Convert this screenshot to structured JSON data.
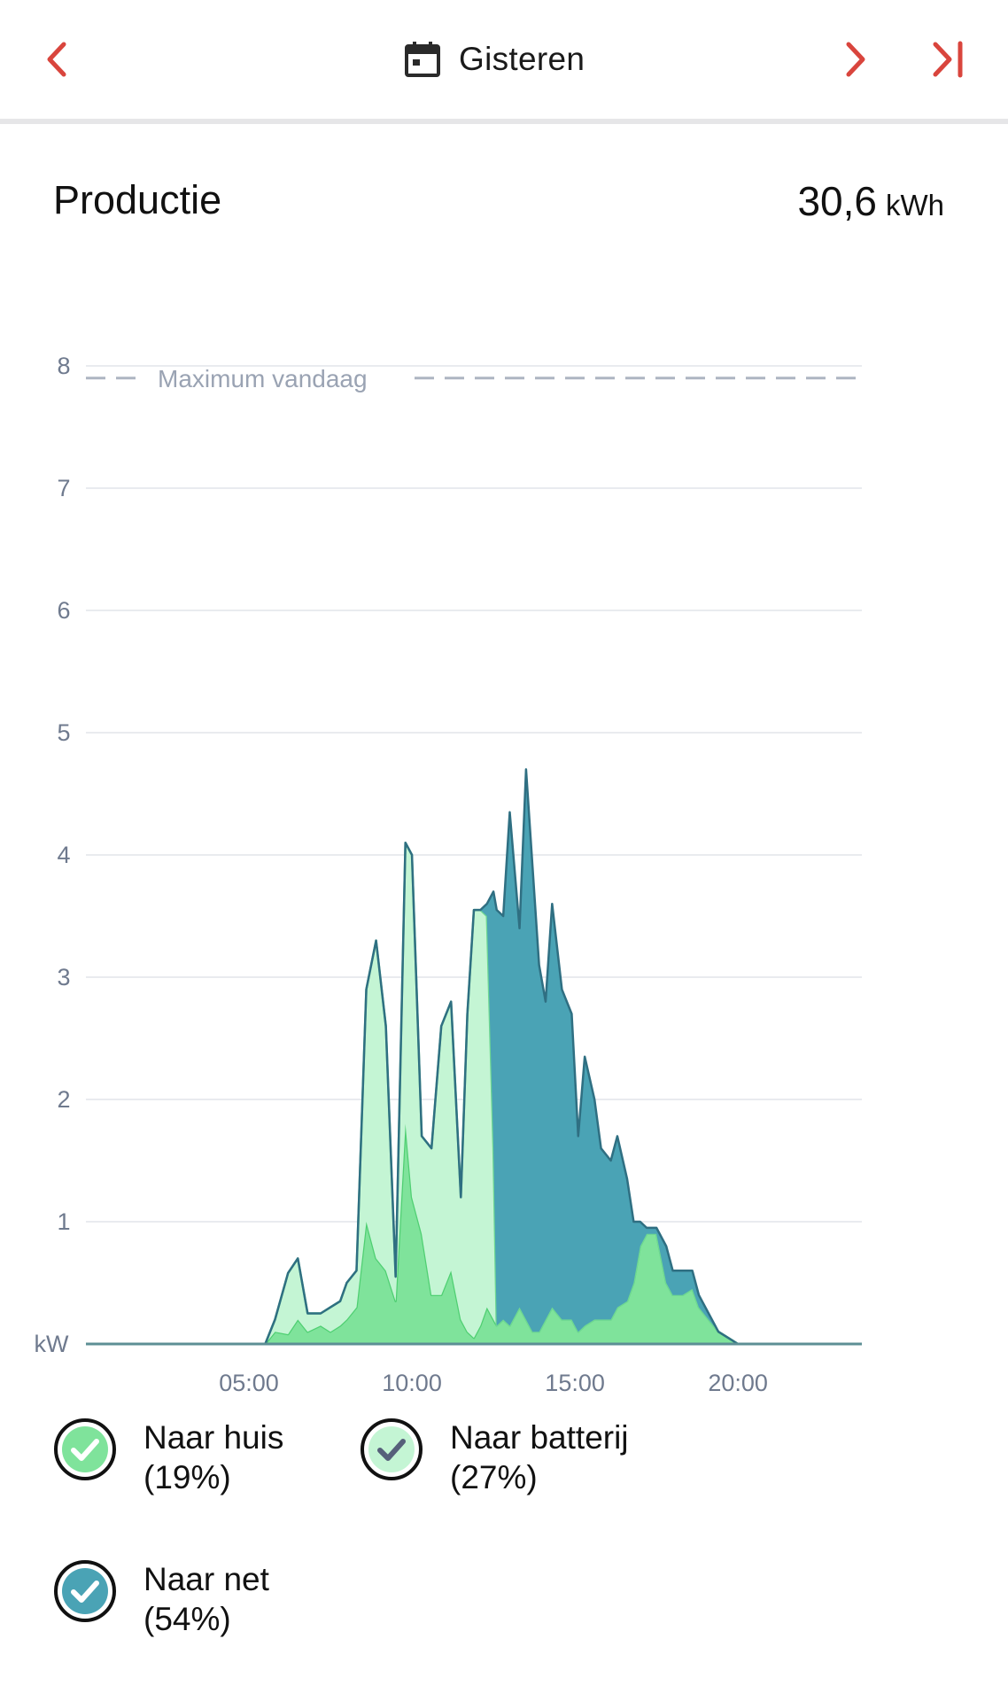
{
  "header": {
    "date_label": "Gisteren",
    "prev_icon": "chevron-left-icon",
    "next_icon": "chevron-right-icon",
    "last_icon": "skip-to-end-icon",
    "calendar_icon": "calendar-icon",
    "accent_color": "#d9453d"
  },
  "production": {
    "title": "Productie",
    "total_value": "30,6",
    "total_unit": "kWh"
  },
  "legend": [
    {
      "label": "Naar huis",
      "pct": "(19%)",
      "color": "#7fe39b",
      "check_color": "#ffffff"
    },
    {
      "label": "Naar batterij",
      "pct": "(27%)",
      "color": "#c4f5d4",
      "check_color": "#56607a"
    },
    {
      "label": "Naar net",
      "pct": "(54%)",
      "color": "#4aa3b5",
      "check_color": "#ffffff"
    }
  ],
  "chart_data": {
    "type": "area",
    "y_unit_label": "kW",
    "ylim": [
      0,
      8
    ],
    "y_ticks": [
      "1",
      "2",
      "3",
      "4",
      "5",
      "6",
      "7",
      "8"
    ],
    "x_tick_labels": [
      "05:00",
      "10:00",
      "15:00",
      "20:00"
    ],
    "x_tick_hours": [
      5,
      10,
      15,
      20
    ],
    "xlim_hours": [
      0,
      23.8
    ],
    "grid": true,
    "reference_line": {
      "label": "Maximum vandaag",
      "value": 7.9,
      "style": "dashed"
    },
    "stacked": true,
    "x_hours": [
      0,
      5.5,
      5.8,
      6.2,
      6.5,
      6.8,
      7.2,
      7.5,
      7.8,
      8.0,
      8.3,
      8.6,
      8.9,
      9.2,
      9.5,
      9.8,
      10.0,
      10.3,
      10.6,
      10.9,
      11.2,
      11.5,
      11.7,
      11.9,
      12.1,
      12.3,
      12.5,
      12.6,
      12.8,
      13.0,
      13.3,
      13.5,
      13.7,
      13.9,
      14.1,
      14.3,
      14.6,
      14.9,
      15.1,
      15.3,
      15.6,
      15.8,
      16.1,
      16.3,
      16.6,
      16.8,
      17.0,
      17.2,
      17.5,
      17.8,
      18.0,
      18.3,
      18.6,
      18.8,
      19.1,
      19.4,
      19.7,
      20.0,
      20.4,
      20.8,
      21.3,
      23.8
    ],
    "series": [
      {
        "name": "Naar huis",
        "color": "#7fe39b",
        "values": [
          0,
          0,
          0.1,
          0.08,
          0.2,
          0.1,
          0.15,
          0.1,
          0.15,
          0.2,
          0.3,
          1.0,
          0.7,
          0.6,
          0.35,
          1.8,
          1.2,
          0.9,
          0.4,
          0.4,
          0.6,
          0.2,
          0.1,
          0.05,
          0.15,
          0.3,
          0.2,
          0.15,
          0.2,
          0.15,
          0.3,
          0.2,
          0.1,
          0.1,
          0.2,
          0.3,
          0.2,
          0.2,
          0.1,
          0.15,
          0.2,
          0.2,
          0.2,
          0.3,
          0.35,
          0.5,
          0.8,
          0.9,
          0.9,
          0.5,
          0.4,
          0.4,
          0.45,
          0.3,
          0.2,
          0.1,
          0.05,
          0,
          0,
          0,
          0,
          0
        ]
      },
      {
        "name": "Naar batterij",
        "color": "#c4f5d4",
        "values": [
          0,
          0,
          0.1,
          0.5,
          0.5,
          0.15,
          0.1,
          0.2,
          0.2,
          0.3,
          0.3,
          1.9,
          2.6,
          2.0,
          0.2,
          2.3,
          2.8,
          0.8,
          1.2,
          2.2,
          2.2,
          1.0,
          2.6,
          3.5,
          3.4,
          3.2,
          1.4,
          0.0,
          0,
          0,
          0,
          0,
          0,
          0,
          0,
          0,
          0,
          0,
          0,
          0,
          0,
          0,
          0,
          0,
          0,
          0,
          0,
          0,
          0,
          0,
          0,
          0,
          0,
          0,
          0,
          0,
          0,
          0,
          0,
          0,
          0,
          0
        ]
      },
      {
        "name": "Naar net",
        "color": "#4aa3b5",
        "values": [
          0,
          0,
          0,
          0,
          0,
          0,
          0,
          0,
          0,
          0,
          0,
          0,
          0,
          0,
          0,
          0,
          0,
          0,
          0,
          0,
          0,
          0,
          0,
          0,
          0.0,
          0.1,
          2.1,
          3.4,
          3.3,
          4.2,
          3.1,
          4.5,
          3.8,
          3.0,
          2.6,
          3.3,
          2.7,
          2.5,
          1.6,
          2.2,
          1.8,
          1.4,
          1.3,
          1.4,
          1.0,
          0.5,
          0.2,
          0.05,
          0.05,
          0.3,
          0.2,
          0.2,
          0.15,
          0.1,
          0.05,
          0,
          0,
          0,
          0,
          0,
          0,
          0
        ]
      }
    ]
  }
}
